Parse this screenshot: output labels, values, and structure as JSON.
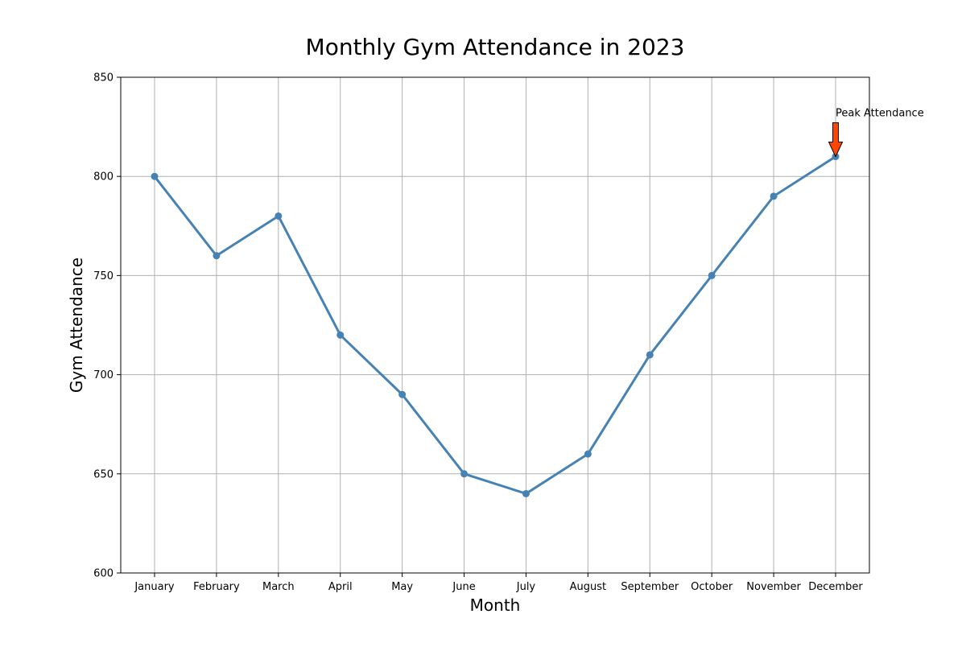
{
  "chart_data": {
    "type": "line",
    "title": "Monthly Gym Attendance in 2023",
    "xlabel": "Month",
    "ylabel": "Gym Attendance",
    "categories": [
      "January",
      "February",
      "March",
      "April",
      "May",
      "June",
      "July",
      "August",
      "September",
      "October",
      "November",
      "December"
    ],
    "series": [
      {
        "values": [
          800,
          760,
          780,
          720,
          690,
          650,
          640,
          660,
          710,
          750,
          790,
          810
        ],
        "color": "#4682B4"
      }
    ],
    "ylim": [
      600,
      850
    ],
    "yticks": [
      600,
      650,
      700,
      750,
      800,
      850
    ],
    "grid": true,
    "annotations": [
      {
        "text": "Peak Attendance",
        "category": "December",
        "value": 810,
        "arrow_color": "#FF4500"
      }
    ]
  }
}
